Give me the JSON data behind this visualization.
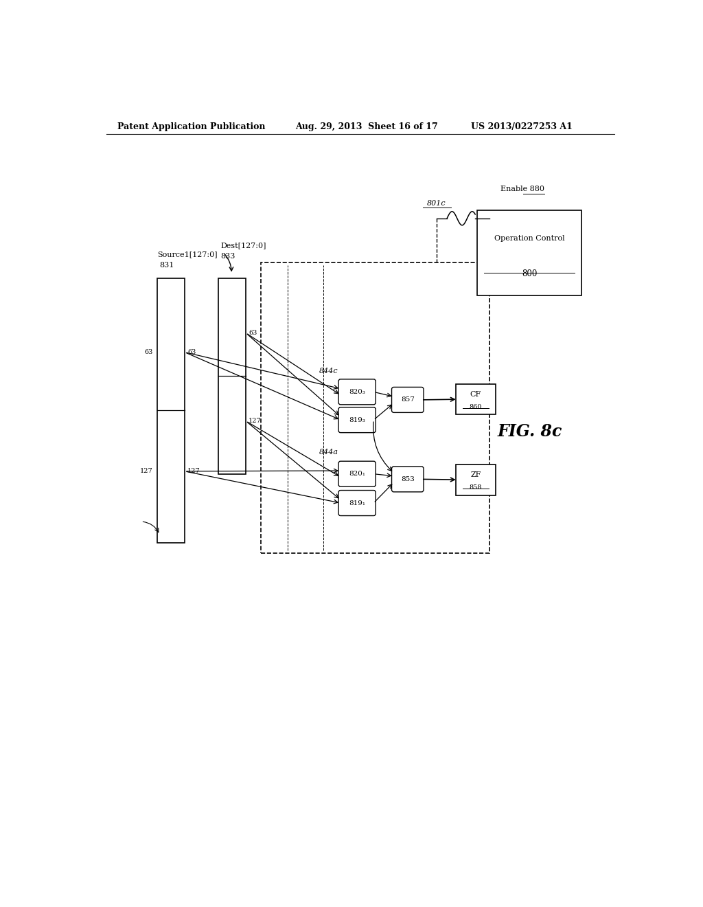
{
  "header_left": "Patent Application Publication",
  "header_mid": "Aug. 29, 2013  Sheet 16 of 17",
  "header_right": "US 2013/0227253 A1",
  "fig_label": "FIG. 8c",
  "background": "#ffffff",
  "source1_label": "Source1[127:0]",
  "source1_num": "831",
  "dest_label": "Dest[127:0]",
  "dest_num": "833",
  "label_63": "63",
  "label_127": "127",
  "label_844c": "844c",
  "label_844a": "844a",
  "box_820_upper": "820₃",
  "box_819_upper": "819₃",
  "box_820_lower": "820₁",
  "box_819_lower": "819₁",
  "box_857": "857",
  "box_853": "853",
  "box_CF": "CF",
  "box_CF_num": "860",
  "box_ZF": "ZF",
  "box_ZF_num": "858",
  "box_800": "800",
  "label_801c": "801c",
  "label_enable": "Enable 880",
  "label_opctrl": "Operation Control"
}
